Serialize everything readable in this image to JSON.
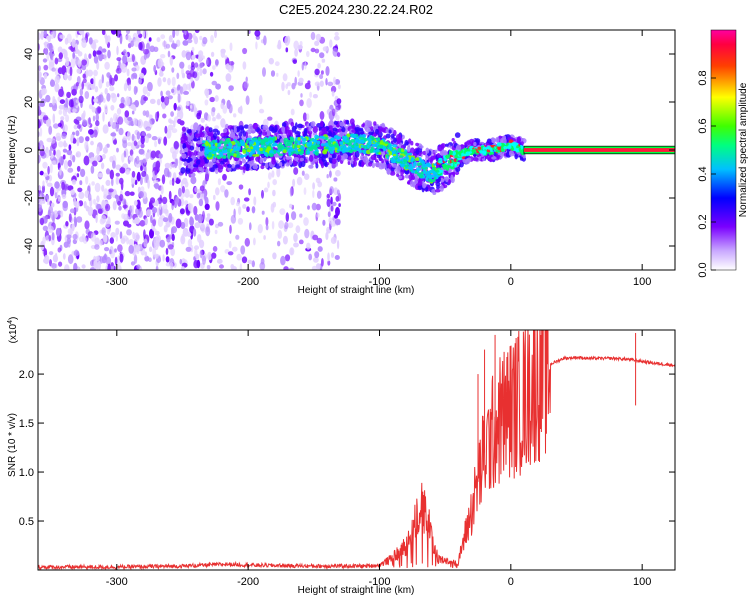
{
  "figure_title": "C2E5.2024.230.22.24.R02",
  "colorbar": {
    "label": "Normalized spectral amplitude",
    "ticks": [
      "0.0",
      "0.2",
      "0.4",
      "0.6",
      "0.8"
    ],
    "tick_values": [
      0.0,
      0.2,
      0.4,
      0.6,
      0.8
    ],
    "range": [
      0.0,
      1.0
    ]
  },
  "chart_data": [
    {
      "type": "heatmap",
      "title": "C2E5.2024.230.22.24.R02",
      "xlabel": "Height of straight line (km)",
      "ylabel": "Frequency (Hz)",
      "xlim": [
        -360,
        125
      ],
      "ylim": [
        -50,
        50
      ],
      "x_ticks": [
        -300,
        -200,
        -100,
        0,
        100
      ],
      "x_tick_labels": [
        "-300",
        "-200",
        "-100",
        "0",
        "100"
      ],
      "y_ticks": [
        -40,
        -20,
        0,
        20,
        40
      ],
      "y_tick_labels": [
        "-40",
        "-20",
        "0",
        "20",
        "40"
      ],
      "colormap": "rainbow (white-purple-blue-cyan-green-yellow-red-magenta)",
      "description_points": {
        "signal_band_center_hz": [
          {
            "x": -240,
            "y": 0
          },
          {
            "x": -200,
            "y": 1
          },
          {
            "x": -150,
            "y": 2
          },
          {
            "x": -120,
            "y": 3
          },
          {
            "x": -100,
            "y": 2
          },
          {
            "x": -80,
            "y": -4
          },
          {
            "x": -60,
            "y": -10
          },
          {
            "x": -45,
            "y": -4
          },
          {
            "x": -30,
            "y": 0
          },
          {
            "x": -15,
            "y": 0
          },
          {
            "x": 0,
            "y": 2
          },
          {
            "x": 10,
            "y": 0
          },
          {
            "x": 125,
            "y": 0
          }
        ],
        "noise_region_km": [
          -360,
          -130
        ],
        "constant_tone_start_km": 10
      }
    },
    {
      "type": "line",
      "series": [
        {
          "name": "SNR",
          "color": "#e83030"
        }
      ],
      "xlabel": "Height of straight line (km)",
      "ylabel": "SNR (10 * v/v)",
      "y_scale_label": "(x10",
      "y_scale_exp": "4",
      "xlim": [
        -360,
        125
      ],
      "ylim": [
        0,
        2.45
      ],
      "y_units_multiplier": 10000,
      "x_ticks": [
        -300,
        -200,
        -100,
        0,
        100
      ],
      "x_tick_labels": [
        "-300",
        "-200",
        "-100",
        "0",
        "100"
      ],
      "y_ticks": [
        0.5,
        1.0,
        1.5,
        2.0
      ],
      "y_tick_labels": [
        "0.5",
        "1.0",
        "1.5",
        "2.0"
      ],
      "envelope": [
        [
          -360,
          0.03
        ],
        [
          -300,
          0.03
        ],
        [
          -250,
          0.04
        ],
        [
          -215,
          0.06
        ],
        [
          -200,
          0.05
        ],
        [
          -150,
          0.04
        ],
        [
          -110,
          0.04
        ],
        [
          -100,
          0.05
        ],
        [
          -90,
          0.12
        ],
        [
          -80,
          0.25
        ],
        [
          -72,
          0.5
        ],
        [
          -68,
          0.75
        ],
        [
          -65,
          0.6
        ],
        [
          -60,
          0.3
        ],
        [
          -55,
          0.12
        ],
        [
          -45,
          0.08
        ],
        [
          -40,
          0.06
        ],
        [
          -38,
          0.2
        ],
        [
          -35,
          0.35
        ],
        [
          -30,
          0.6
        ],
        [
          -25,
          0.9
        ],
        [
          -20,
          1.2
        ],
        [
          -15,
          1.35
        ],
        [
          -10,
          1.5
        ],
        [
          -5,
          1.6
        ],
        [
          0,
          1.65
        ],
        [
          5,
          1.7
        ],
        [
          10,
          1.75
        ],
        [
          20,
          1.95
        ],
        [
          30,
          2.1
        ],
        [
          40,
          2.16
        ],
        [
          50,
          2.17
        ],
        [
          60,
          2.16
        ],
        [
          70,
          2.16
        ],
        [
          80,
          2.16
        ],
        [
          90,
          2.15
        ],
        [
          100,
          2.13
        ],
        [
          110,
          2.11
        ],
        [
          125,
          2.09
        ]
      ],
      "spikes": [
        {
          "x": -25,
          "y": 2.0
        },
        {
          "x": -20,
          "y": 2.25
        },
        {
          "x": -12,
          "y": 2.4
        },
        {
          "x": 95,
          "y": 2.42
        },
        {
          "x": 95,
          "y": 1.68
        }
      ]
    }
  ]
}
